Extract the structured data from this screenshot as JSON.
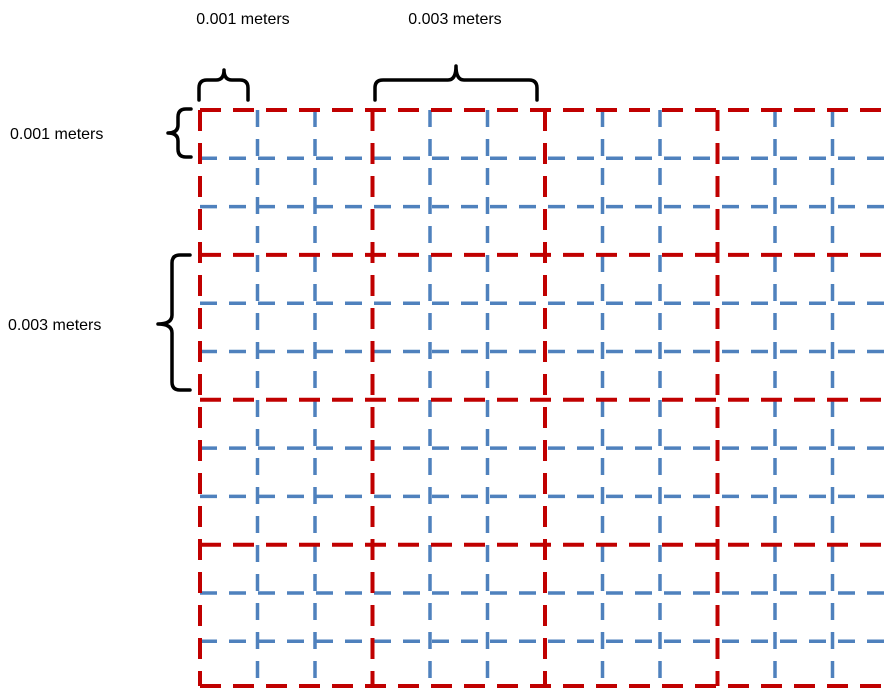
{
  "colors": {
    "fine_grid": "#4f81bd",
    "coarse_grid": "#c00000",
    "annotation": "#000000",
    "background": "#ffffff"
  },
  "grid": {
    "fine_spacing_m": 0.001,
    "coarse_spacing_m": 0.003,
    "line_style": "dashed"
  },
  "annotations": {
    "top_fine_label": "0.001 meters",
    "top_coarse_label": "0.003 meters",
    "left_fine_label": "0.001 meters",
    "left_coarse_label": "0.003 meters"
  }
}
